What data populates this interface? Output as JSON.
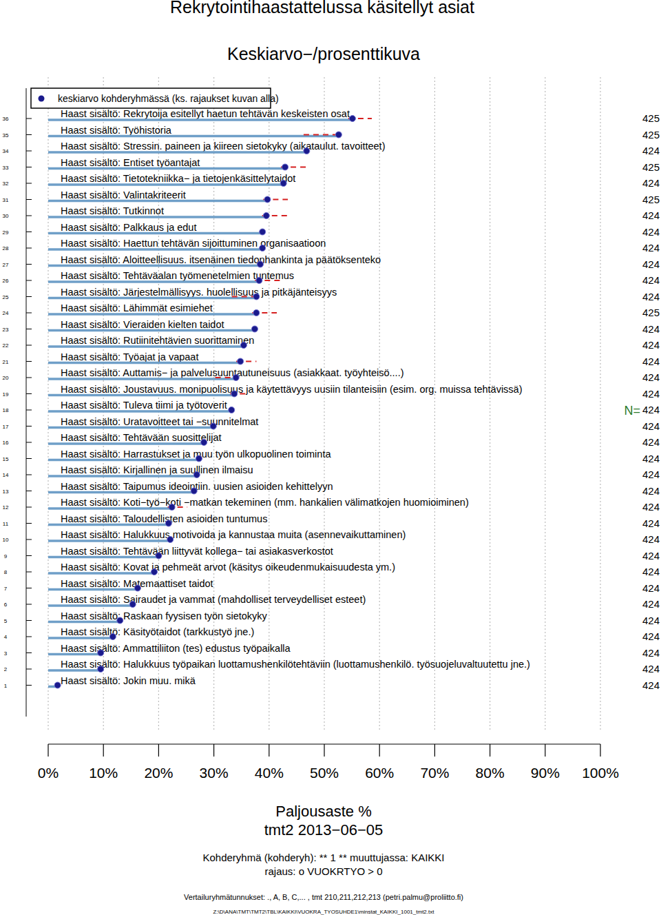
{
  "chart_data": {
    "type": "bar",
    "orientation": "horizontal",
    "title": "Rekrytointihaastattelussa käsitellyt asiat",
    "subtitle": "Keskiarvo−/prosenttikuva",
    "x_label": "Paljousaste %",
    "x_sublabel": "tmt2 2013−06−05",
    "notes": [
      "Kohderyhmä (kohderyh): ** 1 ** muuttujassa:  KAIKKI",
      "rajaus:  o VUOKRTYO > 0",
      "Vertailuryhmätunnukset: ., A, B, C,...    , tmt 210,211,212,213 (petri.palmu@proliitto.fi)",
      "Z:\\D\\ANA\\TMT\\TMT2\\TBL\\KAIKKI\\VUOKRA_TYOSUHDE1\\minstat_KAIKKI_1001_tmt2.txt"
    ],
    "n_label": "N=",
    "categories": [
      "Haast sisältö: Rekrytoija esitellyt haetun tehtävän keskeisten osat",
      "Haast sisältö: Työhistoria",
      "Haast sisältö: Stressin. paineen ja kiireen sietokyky (aikataulut. tavoitteet)",
      "Haast sisältö: Entiset työantajat",
      "Haast sisältö: Tietotekniikka− ja tietojenkäsittelytaidot",
      "Haast sisältö: Valintakriteerit",
      "Haast sisältö: Tutkinnot",
      "Haast sisältö: Palkkaus ja edut",
      "Haast sisältö: Haettun tehtävän sijoittuminen organisaatioon",
      "Haast sisältö: Aloitteellisuus. itsenäinen tiedonhankinta ja päätöksenteko",
      "Haast sisältö: Tehtäväalan työmenetelmien tuntemus",
      "Haast sisältö: Järjestelmällisyys. huolellisuus ja pitkäjänteisyys",
      "Haast sisältö: Lähimmät esimiehet",
      "Haast sisältö: Vieraiden kielten taidot",
      "Haast sisältö: Rutiinitehtävien suorittaminen",
      "Haast sisältö: Työajat ja vapaat",
      "Haast sisältö: Auttamis− ja palvelusuuntautuneisuus (asiakkaat. työyhteisö....)",
      "Haast sisältö: Joustavuus. monipuolisuus ja käytettävyys uusiin tilanteisiin (esim. org. muissa tehtävissä)",
      "Haast sisältö: Tuleva tiimi ja työtoverit",
      "Haast sisältö: Uratavoitteet tai −suunnitelmat",
      "Haast sisältö: Tehtävään suosittelijat",
      "Haast sisältö: Harrastukset ja muu työn ulkopuolinen toiminta",
      "Haast sisältö: Kirjallinen ja suullinen ilmaisu",
      "Haast sisältö: Taipumus ideointiin. uusien asioiden kehittelyyn",
      "Haast sisältö: Koti−työ−koti −matkan tekeminen (mm. hankalien välimatkojen huomioiminen)",
      "Haast sisältö: Taloudellisten asioiden tuntumus",
      "Haast sisältö: Halukkuus motivoida ja kannustaa muita (asennevaikuttaminen)",
      "Haast sisältö: Tehtävään liittyvät kollega− tai asiakasverkostot",
      "Haast sisältö: Kovat ja pehmeät arvot (käsitys oikeudenmukaisuudesta ym.)",
      "Haast sisältö: Matemaattiset taidot",
      "Haast sisältö: Sairaudet ja vammat (mahdolliset terveydelliset esteet)",
      "Haast sisältö: Raskaan fyysisen työn sietokyky",
      "Haast sisältö: Käsityötaidot (tarkkustyö jne.)",
      "Haast sisältö: Ammattiliiton (tes) edustus työpaikalla",
      "Haast sisältö: Halukkuus työpaikan luottamushenkilötehtäviin (luottamushenkilö. työsuojeluvaltuutettu jne.)",
      "Haast sisältö: Jokin muu. mikä"
    ],
    "row_numbers": [
      36,
      35,
      34,
      33,
      32,
      31,
      30,
      29,
      28,
      27,
      26,
      25,
      24,
      23,
      22,
      21,
      20,
      19,
      18,
      17,
      16,
      15,
      14,
      13,
      12,
      11,
      10,
      9,
      8,
      7,
      6,
      5,
      4,
      3,
      2,
      1
    ],
    "n": [
      425,
      425,
      424,
      425,
      424,
      425,
      424,
      424,
      424,
      424,
      424,
      424,
      425,
      424,
      424,
      424,
      424,
      424,
      424,
      424,
      424,
      424,
      424,
      424,
      424,
      424,
      424,
      424,
      424,
      424,
      424,
      424,
      424,
      424,
      424,
      424
    ],
    "series": [
      {
        "name": "keskiarvo kohderyhmässä (ks. rajaukset kuvan alla)",
        "color": "#1a1a8c",
        "marker": "circle",
        "values": [
          55.1,
          52.6,
          46.8,
          42.9,
          42.6,
          39.7,
          39.5,
          38.8,
          38.8,
          38.4,
          38.2,
          37.7,
          37.7,
          37.4,
          35.4,
          34.8,
          34.0,
          33.7,
          33.2,
          29.9,
          28.2,
          27.3,
          26.9,
          26.4,
          22.4,
          21.8,
          22.1,
          20.0,
          19.2,
          16.2,
          15.3,
          13.0,
          11.7,
          9.5,
          9.5,
          1.7
        ]
      },
      {
        "color": "#d62020",
        "line_style": "dashed",
        "values": [
          58.6,
          47,
          null,
          47,
          null,
          43.4,
          43.4,
          null,
          null,
          null,
          42,
          34,
          41.4,
          null,
          null,
          37.7,
          31,
          36,
          null,
          null,
          null,
          null,
          null,
          null,
          25.2,
          null,
          null,
          null,
          null,
          null,
          null,
          null,
          null,
          null,
          null,
          null
        ]
      }
    ],
    "bar_color": "#6f9fc8",
    "xlim": [
      0,
      100
    ],
    "xticks": [
      {
        "value": 0,
        "label": "0%"
      },
      {
        "value": 10,
        "label": "10%"
      },
      {
        "value": 20,
        "label": "20%"
      },
      {
        "value": 30,
        "label": "30%"
      },
      {
        "value": 40,
        "label": "40%"
      },
      {
        "value": 50,
        "label": "50%"
      },
      {
        "value": 60,
        "label": "60%"
      },
      {
        "value": 70,
        "label": "70%"
      },
      {
        "value": 80,
        "label": "80%"
      },
      {
        "value": 90,
        "label": "90%"
      },
      {
        "value": 100,
        "label": "100%"
      }
    ],
    "grid": true,
    "legend": "top-left"
  }
}
